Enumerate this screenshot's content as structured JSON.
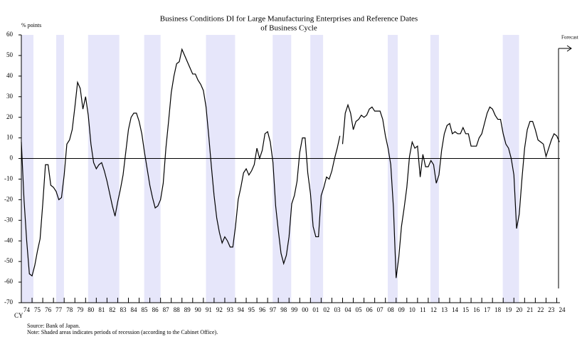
{
  "chart_data": {
    "type": "line",
    "title": "Business Conditions DI for Large Manufacturing Enterprises and Reference Dates",
    "title_line2": "of Business Cycle",
    "y_label": "% points",
    "x_label": "CY",
    "forecast_label": "Forecast",
    "source": "Source: Bank of Japan.",
    "note": "Note: Shaded areas indicates periods of recession (according to the Cabinet Office).",
    "color": "#000000",
    "recession_color": "#e6e6fa",
    "recessions": [
      {
        "start": 1974,
        "end": 1975.13
      },
      {
        "start": 1977.25,
        "end": 1977.98
      },
      {
        "start": 1980.23,
        "end": 1983.15
      },
      {
        "start": 1985.47,
        "end": 1987.0
      },
      {
        "start": 1991.24,
        "end": 1993.96
      },
      {
        "start": 1997.47,
        "end": 1999.2
      },
      {
        "start": 2000.99,
        "end": 2002.18
      },
      {
        "start": 2008.22,
        "end": 2009.15
      },
      {
        "start": 2012.2,
        "end": 2013.0
      },
      {
        "start": 2018.96,
        "end": 2020.48
      }
    ],
    "x": [
      1974,
      1974.25,
      1974.5,
      1974.75,
      1975,
      1975.25,
      1975.5,
      1975.75,
      1976,
      1976.25,
      1976.5,
      1976.75,
      1977,
      1977.25,
      1977.5,
      1977.75,
      1978,
      1978.25,
      1978.5,
      1978.75,
      1979,
      1979.25,
      1979.5,
      1979.75,
      1980,
      1980.25,
      1980.5,
      1980.75,
      1981,
      1981.25,
      1981.5,
      1981.75,
      1982,
      1982.25,
      1982.5,
      1982.75,
      1983,
      1983.25,
      1983.5,
      1983.75,
      1984,
      1984.25,
      1984.5,
      1984.75,
      1985,
      1985.25,
      1985.5,
      1985.75,
      1986,
      1986.25,
      1986.5,
      1986.75,
      1987,
      1987.25,
      1987.5,
      1987.75,
      1988,
      1988.25,
      1988.5,
      1988.75,
      1989,
      1989.25,
      1989.5,
      1989.75,
      1990,
      1990.25,
      1990.5,
      1990.75,
      1991,
      1991.25,
      1991.5,
      1991.75,
      1992,
      1992.25,
      1992.5,
      1992.75,
      1993,
      1993.25,
      1993.5,
      1993.75,
      1994,
      1994.25,
      1994.5,
      1994.75,
      1995,
      1995.25,
      1995.5,
      1995.75,
      1996,
      1996.25,
      1996.5,
      1996.75,
      1997,
      1997.25,
      1997.5,
      1997.75,
      1998,
      1998.25,
      1998.5,
      1998.75,
      1999,
      1999.25,
      1999.5,
      1999.75,
      2000,
      2000.25,
      2000.5,
      2000.75,
      2001,
      2001.25,
      2001.5,
      2001.75,
      2002,
      2002.25,
      2002.5,
      2002.75,
      2003,
      2003.25,
      2003.5,
      2003.75,
      2003.875,
      2004,
      2004.25,
      2004.5,
      2004.75,
      2005,
      2005.25,
      2005.5,
      2005.75,
      2006,
      2006.25,
      2006.5,
      2006.75,
      2007,
      2007.25,
      2007.5,
      2007.75,
      2008,
      2008.25,
      2008.5,
      2008.75,
      2009,
      2009.25,
      2009.5,
      2009.75,
      2010,
      2010.25,
      2010.5,
      2010.75,
      2011,
      2011.25,
      2011.5,
      2011.75,
      2012,
      2012.25,
      2012.5,
      2012.75,
      2013,
      2013.25,
      2013.5,
      2013.75,
      2014,
      2014.25,
      2014.5,
      2014.75,
      2015,
      2015.25,
      2015.5,
      2015.75,
      2016,
      2016.25,
      2016.5,
      2016.75,
      2017,
      2017.25,
      2017.5,
      2017.75,
      2018,
      2018.25,
      2018.5,
      2018.75,
      2019,
      2019.25,
      2019.5,
      2019.75,
      2020,
      2020.25,
      2020.5,
      2020.75,
      2021,
      2021.25,
      2021.5,
      2021.75,
      2022,
      2022.25,
      2022.5,
      2022.75,
      2023,
      2023.25,
      2023.5,
      2023.75,
      2024,
      2024.25
    ],
    "values": [
      8,
      -20,
      -40,
      -56,
      -57,
      -52,
      -45,
      -39,
      -22,
      -3,
      -3,
      -13,
      -14,
      -16,
      -20,
      -19,
      -8,
      7,
      9,
      14,
      25,
      37,
      34,
      24,
      30,
      21,
      7,
      -2,
      -5,
      -3,
      -2,
      -6,
      -11,
      -17,
      -23,
      -28,
      -21,
      -15,
      -8,
      3,
      14,
      20,
      22,
      22,
      18,
      12,
      3,
      -5,
      -13,
      -19,
      -24,
      -23,
      -20,
      -12,
      5,
      18,
      32,
      40,
      46,
      47,
      53,
      50,
      47,
      44,
      41,
      41,
      38,
      36,
      33,
      25,
      11,
      -4,
      -18,
      -29,
      -36,
      -41,
      -38,
      -40,
      -43,
      -43,
      -33,
      -20,
      -14,
      -7,
      -5,
      -8,
      -6,
      -3,
      5,
      0,
      4,
      12,
      13,
      8,
      -2,
      -23,
      -35,
      -46,
      -51,
      -47,
      -38,
      -22,
      -18,
      -11,
      3,
      10,
      10,
      -7,
      -17,
      -33,
      -38,
      -38,
      -18,
      -14,
      -9,
      -10,
      -6,
      0,
      5,
      11,
      null,
      7,
      22,
      26,
      22,
      14,
      18,
      19,
      21,
      20,
      21,
      24,
      25,
      23,
      23,
      23,
      19,
      11,
      5,
      -3,
      -24,
      -58,
      -48,
      -33,
      -24,
      -14,
      1,
      8,
      5,
      6,
      -9,
      2,
      -4,
      -4,
      -1,
      -3,
      -12,
      -8,
      4,
      12,
      16,
      17,
      12,
      13,
      12,
      12,
      15,
      12,
      12,
      6,
      6,
      6,
      10,
      12,
      17,
      22,
      25,
      24,
      21,
      19,
      19,
      12,
      7,
      5,
      0,
      -8,
      -34,
      -27,
      -10,
      5,
      14,
      18,
      18,
      14,
      9,
      8,
      7,
      1,
      5,
      9,
      12,
      11,
      8
    ],
    "xlim": [
      1974,
      2024.3
    ],
    "xticks": [
      {
        "value": 1974,
        "label": "74"
      },
      {
        "value": 1975,
        "label": "75"
      },
      {
        "value": 1976,
        "label": "76"
      },
      {
        "value": 1977,
        "label": "77"
      },
      {
        "value": 1978,
        "label": "78"
      },
      {
        "value": 1979,
        "label": "79"
      },
      {
        "value": 1980,
        "label": "80"
      },
      {
        "value": 1981,
        "label": "81"
      },
      {
        "value": 1982,
        "label": "82"
      },
      {
        "value": 1983,
        "label": "83"
      },
      {
        "value": 1984,
        "label": "84"
      },
      {
        "value": 1985,
        "label": "85"
      },
      {
        "value": 1986,
        "label": "86"
      },
      {
        "value": 1987,
        "label": "87"
      },
      {
        "value": 1988,
        "label": "88"
      },
      {
        "value": 1989,
        "label": "89"
      },
      {
        "value": 1990,
        "label": "90"
      },
      {
        "value": 1991,
        "label": "91"
      },
      {
        "value": 1992,
        "label": "92"
      },
      {
        "value": 1993,
        "label": "93"
      },
      {
        "value": 1994,
        "label": "94"
      },
      {
        "value": 1995,
        "label": "95"
      },
      {
        "value": 1996,
        "label": "96"
      },
      {
        "value": 1997,
        "label": "97"
      },
      {
        "value": 1998,
        "label": "98"
      },
      {
        "value": 1999,
        "label": "99"
      },
      {
        "value": 2000,
        "label": "00"
      },
      {
        "value": 2001,
        "label": "01"
      },
      {
        "value": 2002,
        "label": "02"
      },
      {
        "value": 2003,
        "label": "03"
      },
      {
        "value": 2004,
        "label": "04"
      },
      {
        "value": 2005,
        "label": "05"
      },
      {
        "value": 2006,
        "label": "06"
      },
      {
        "value": 2007,
        "label": "07"
      },
      {
        "value": 2008,
        "label": "08"
      },
      {
        "value": 2009,
        "label": "09"
      },
      {
        "value": 2010,
        "label": "10"
      },
      {
        "value": 2011,
        "label": "11"
      },
      {
        "value": 2012,
        "label": "12"
      },
      {
        "value": 2013,
        "label": "13"
      },
      {
        "value": 2014,
        "label": "14"
      },
      {
        "value": 2015,
        "label": "15"
      },
      {
        "value": 2016,
        "label": "16"
      },
      {
        "value": 2017,
        "label": "17"
      },
      {
        "value": 2018,
        "label": "18"
      },
      {
        "value": 2019,
        "label": "19"
      },
      {
        "value": 2020,
        "label": "20"
      },
      {
        "value": 2021,
        "label": "21"
      },
      {
        "value": 2022,
        "label": "22"
      },
      {
        "value": 2023,
        "label": "23"
      },
      {
        "value": 2024,
        "label": "24"
      }
    ],
    "ylim": [
      -70,
      60
    ],
    "yticks": [
      -70,
      -60,
      -50,
      -40,
      -30,
      -20,
      -10,
      0,
      10,
      20,
      30,
      40,
      50,
      60
    ]
  }
}
